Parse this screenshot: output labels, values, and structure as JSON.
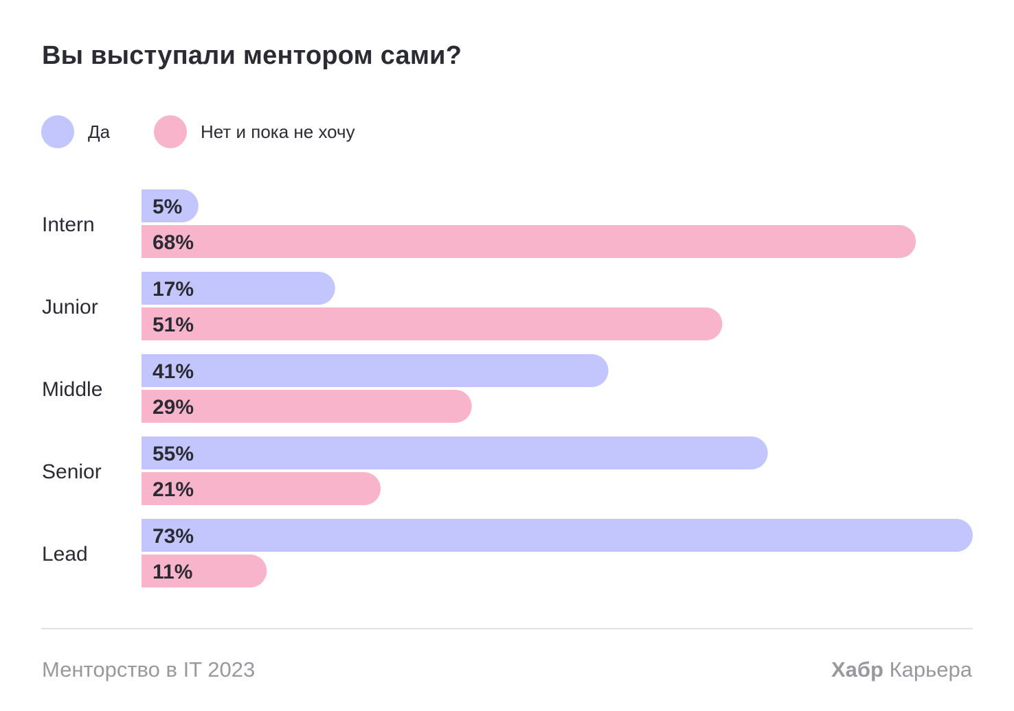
{
  "title": "Вы выступали ментором сами?",
  "chart_data": {
    "type": "bar",
    "orientation": "horizontal",
    "title": "Вы выступали ментором сами?",
    "categories": [
      "Intern",
      "Junior",
      "Middle",
      "Senior",
      "Lead"
    ],
    "series": [
      {
        "name": "Да",
        "color": "#c3c6fc",
        "values": [
          5,
          17,
          41,
          55,
          73
        ],
        "labels": [
          "5%",
          "17%",
          "41%",
          "55%",
          "73%"
        ]
      },
      {
        "name": "Нет и пока не хочу",
        "color": "#f8b4ca",
        "values": [
          68,
          51,
          29,
          21,
          11
        ],
        "labels": [
          "68%",
          "51%",
          "29%",
          "21%",
          "11%"
        ]
      }
    ],
    "unit": "%",
    "legend_position": "top-left",
    "grid": false
  },
  "legend": [
    {
      "label": "Да",
      "color": "#c3c6fc"
    },
    {
      "label": "Нет и пока не хочу",
      "color": "#f8b4ca"
    }
  ],
  "footer": {
    "source": "Менторство в IT 2023",
    "brand_bold": "Хабр",
    "brand_rest": " Карьера"
  }
}
